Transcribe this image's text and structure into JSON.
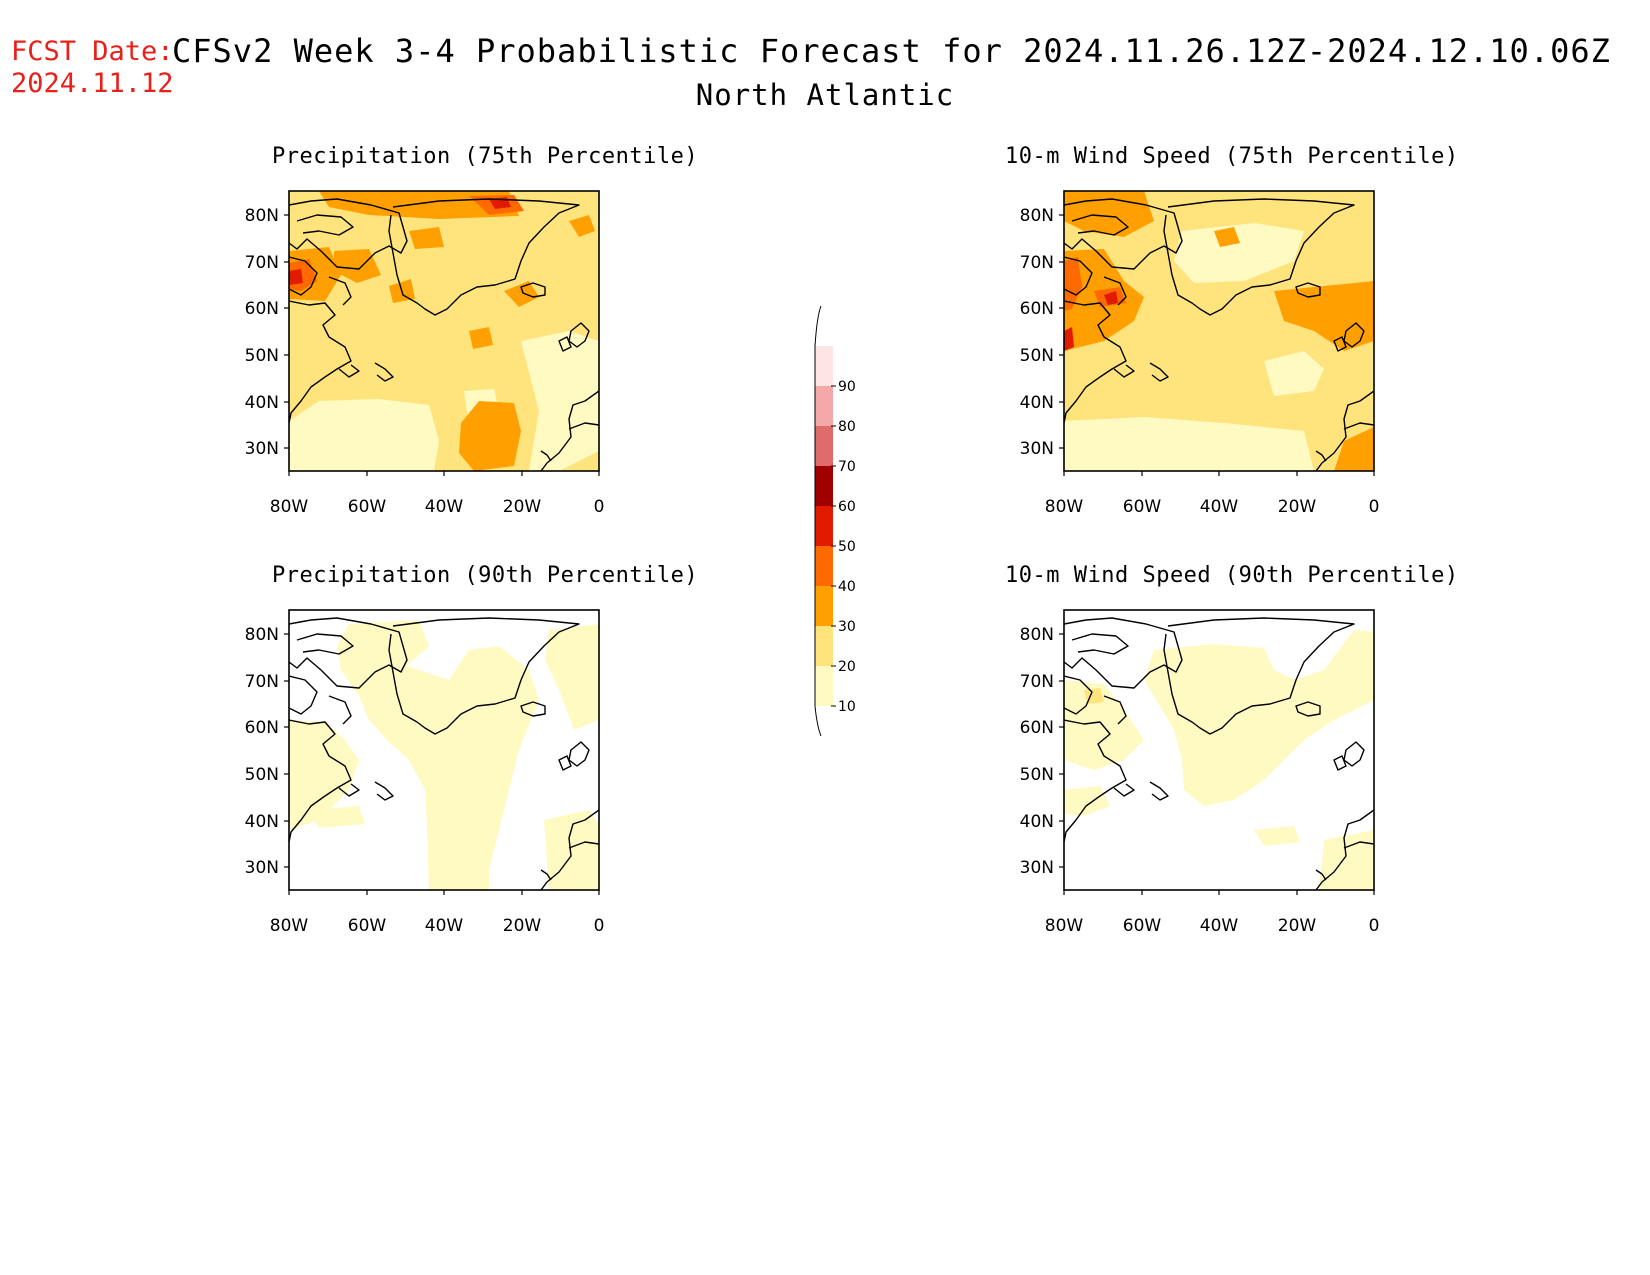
{
  "header": {
    "fcst_label": "FCST Date:",
    "fcst_date": "2024.11.12",
    "title": "CFSv2 Week 3-4 Probabilistic Forecast for 2024.11.26.12Z-2024.12.10.06Z",
    "region": "North Atlantic"
  },
  "axes": {
    "lat_ticks": [
      "80N",
      "70N",
      "60N",
      "50N",
      "40N",
      "30N"
    ],
    "lon_ticks": [
      "80W",
      "60W",
      "40W",
      "20W",
      "0"
    ]
  },
  "panels": [
    {
      "title": "Precipitation (75th Percentile)",
      "dominant_level": "20-30 %"
    },
    {
      "title": "10-m Wind Speed (75th Percentile)",
      "dominant_level": "20-30 %"
    },
    {
      "title": "Precipitation (90th Percentile)",
      "dominant_level": "10-20 %"
    },
    {
      "title": "10-m Wind Speed (90th Percentile)",
      "dominant_level": "10-20 %"
    }
  ],
  "colorbar": {
    "ticks": [
      "10",
      "20",
      "30",
      "40",
      "50",
      "60",
      "70",
      "80",
      "90"
    ],
    "colors": [
      "#fffac2",
      "#ffe47e",
      "#ffa000",
      "#ff6a00",
      "#e01b00",
      "#a00000",
      "#e06b6b",
      "#f5a8a8",
      "#fde5e5"
    ]
  }
}
